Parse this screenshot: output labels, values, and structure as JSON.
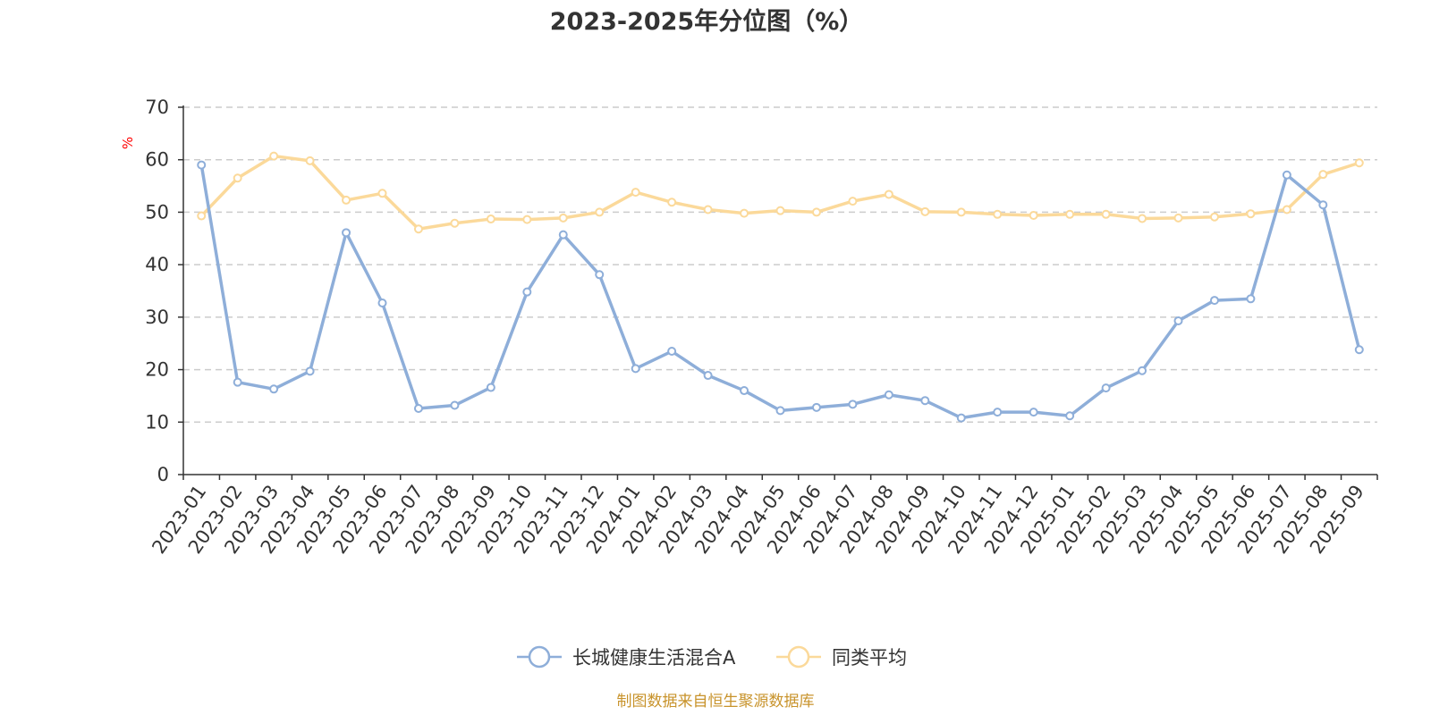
{
  "chart_data": {
    "type": "line",
    "title": "2023-2025年分位图（%）",
    "ylabel": "%",
    "ylim": [
      0,
      70
    ],
    "yticks": [
      0,
      10,
      20,
      30,
      40,
      50,
      60,
      70
    ],
    "grid": true,
    "categories": [
      "2023-01",
      "2023-02",
      "2023-03",
      "2023-04",
      "2023-05",
      "2023-06",
      "2023-07",
      "2023-08",
      "2023-09",
      "2023-10",
      "2023-11",
      "2023-12",
      "2024-01",
      "2024-02",
      "2024-03",
      "2024-04",
      "2024-05",
      "2024-06",
      "2024-07",
      "2024-08",
      "2024-09",
      "2024-10",
      "2024-11",
      "2024-12",
      "2025-01",
      "2025-02",
      "2025-03",
      "2025-04",
      "2025-05",
      "2025-06",
      "2025-07",
      "2025-08",
      "2025-09"
    ],
    "series": [
      {
        "name": "长城健康生活混合A",
        "color": "#8eaed9",
        "values": [
          59.0,
          17.6,
          16.3,
          19.7,
          46.1,
          32.7,
          12.6,
          13.2,
          16.6,
          34.8,
          45.7,
          38.1,
          20.2,
          23.5,
          18.9,
          16.0,
          12.2,
          12.8,
          13.4,
          15.2,
          14.1,
          10.8,
          11.9,
          11.9,
          11.2,
          16.5,
          19.8,
          29.3,
          33.2,
          33.5,
          57.1,
          51.4,
          23.8
        ]
      },
      {
        "name": "同类平均",
        "color": "#fbd99a",
        "values": [
          49.3,
          56.5,
          60.7,
          59.8,
          52.3,
          53.6,
          46.8,
          47.9,
          48.7,
          48.6,
          48.9,
          50.0,
          53.8,
          51.9,
          50.5,
          49.8,
          50.3,
          50.0,
          52.1,
          53.4,
          50.1,
          50.0,
          49.6,
          49.4,
          49.6,
          49.6,
          48.8,
          48.9,
          49.1,
          49.7,
          50.5,
          57.2,
          59.4
        ]
      }
    ],
    "legend_position": "bottom-center"
  },
  "source_note": "制图数据来自恒生聚源数据库",
  "colors": {
    "axis": "#333333",
    "grid": "#cccccc",
    "source": "#c8932b",
    "ylabel": "#ff0000"
  }
}
